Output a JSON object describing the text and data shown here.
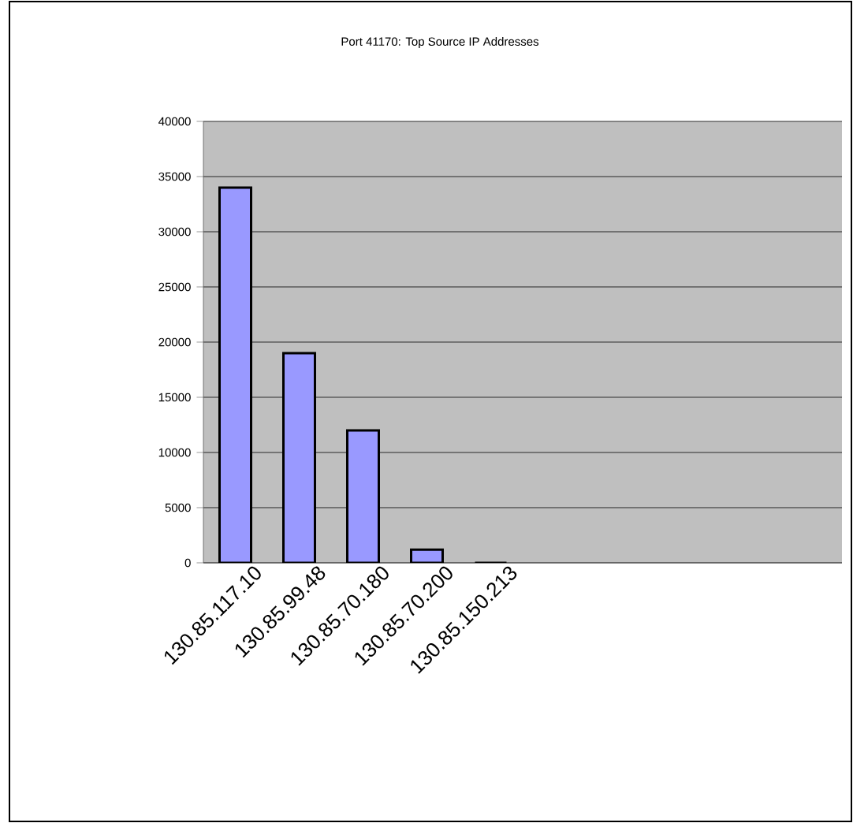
{
  "chart_data": {
    "type": "bar",
    "title": "Port 41170: Top Source IP Addresses",
    "categories": [
      "130.85.117.10",
      "130.85.99.48",
      "130.85.70.180",
      "130.85.70.200",
      "130.85.150.213",
      null,
      null,
      null,
      null,
      null
    ],
    "values": [
      34000,
      19000,
      12000,
      1200,
      0,
      null,
      null,
      null,
      null,
      null
    ],
    "color": "#9999ff",
    "ylim": [
      0,
      40000
    ],
    "yticks": [
      0,
      5000,
      10000,
      15000,
      20000,
      25000,
      30000,
      35000,
      40000
    ],
    "grid": "y"
  }
}
